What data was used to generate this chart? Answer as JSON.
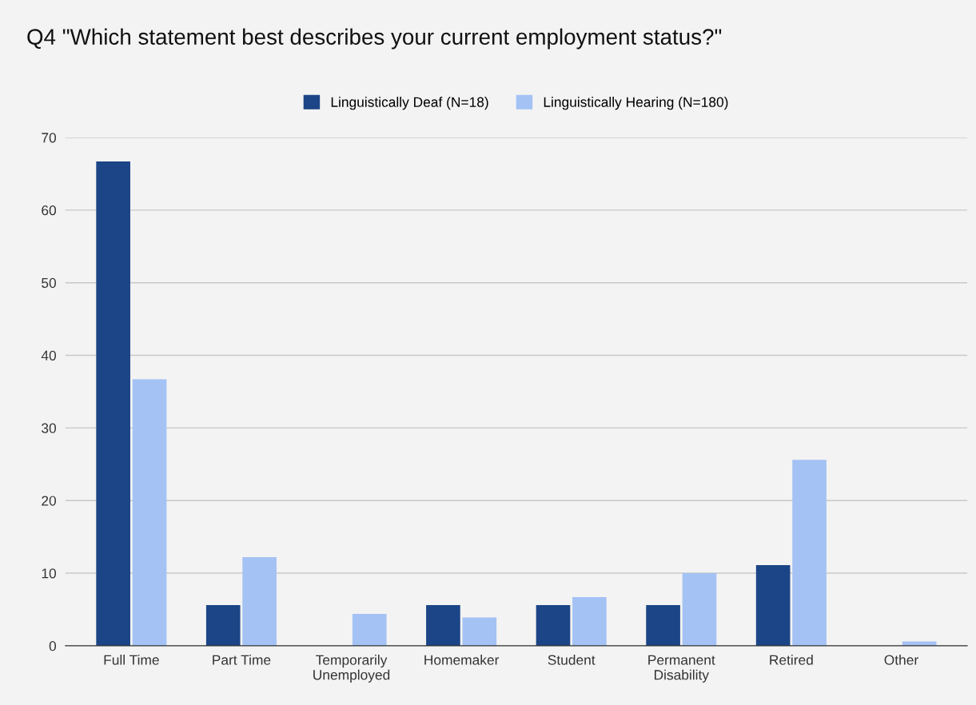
{
  "chart_data": {
    "type": "bar",
    "title": "Q4 \"Which statement best describes your current employment status?\"",
    "categories": [
      "Full Time",
      "Part Time",
      "Temporarily\nUnemployed",
      "Homemaker",
      "Student",
      "Permanent\nDisability",
      "Retired",
      "Other"
    ],
    "series": [
      {
        "name": "Linguistically Deaf (N=18)",
        "color": "#1c4587",
        "values": [
          66.7,
          5.6,
          0,
          5.6,
          5.6,
          5.6,
          11.1,
          0
        ]
      },
      {
        "name": "Linguistically Hearing (N=180)",
        "color": "#a4c2f4",
        "values": [
          36.7,
          12.2,
          4.4,
          3.9,
          6.7,
          10.0,
          25.6,
          0.6
        ]
      }
    ],
    "ylim": [
      0,
      70
    ],
    "yticks": [
      0,
      10,
      20,
      30,
      40,
      50,
      60,
      70
    ],
    "grid": "y",
    "legend": "top"
  }
}
